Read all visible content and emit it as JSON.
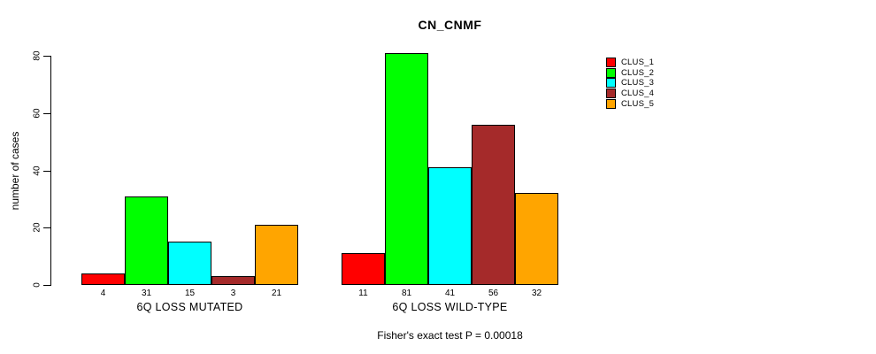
{
  "chart_data": {
    "type": "bar",
    "title": "CN_CNMF",
    "ylabel": "number of cases",
    "xlabel": "",
    "ylim": [
      0,
      80
    ],
    "yticks": [
      0,
      20,
      40,
      60,
      80
    ],
    "grid": false,
    "legend_position": "top-right",
    "bar_value_labels": true,
    "categories": [
      "6Q LOSS MUTATED",
      "6Q LOSS WILD-TYPE"
    ],
    "series": [
      {
        "name": "CLUS_1",
        "color": "#ff0000",
        "values": [
          4,
          11
        ]
      },
      {
        "name": "CLUS_2",
        "color": "#00ff00",
        "values": [
          31,
          81
        ]
      },
      {
        "name": "CLUS_3",
        "color": "#00ffff",
        "values": [
          15,
          41
        ]
      },
      {
        "name": "CLUS_4",
        "color": "#a52a2a",
        "values": [
          3,
          56
        ]
      },
      {
        "name": "CLUS_5",
        "color": "#ffa500",
        "values": [
          21,
          32
        ]
      }
    ],
    "annotation": "Fisher's exact test P = 0.00018"
  }
}
